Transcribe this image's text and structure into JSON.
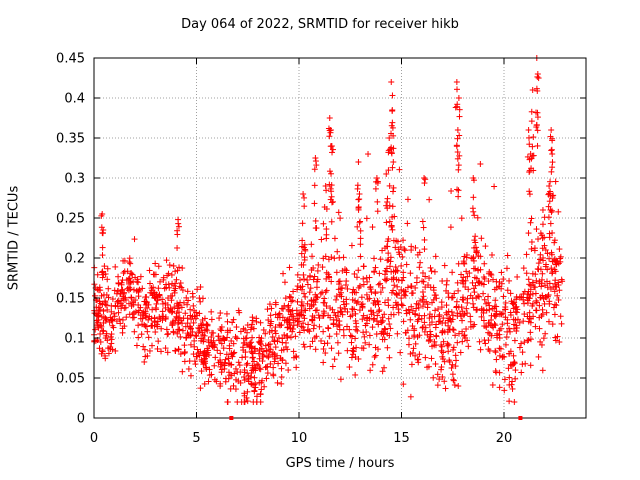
{
  "chart_data": {
    "type": "scatter",
    "title": "Day 064 of 2022, SRMTID for receiver hikb",
    "xlabel": "GPS time / hours",
    "ylabel": "SRMTID / TECUs",
    "xlim": [
      0,
      24
    ],
    "ylim": [
      0,
      0.45
    ],
    "xticks": [
      "0",
      "5",
      "10",
      "15",
      "20"
    ],
    "yticks": [
      "0",
      "0.05",
      "0.1",
      "0.15",
      "0.2",
      "0.25",
      "0.3",
      "0.35",
      "0.4",
      "0.45"
    ],
    "grid": true,
    "marker": "+",
    "color": "#ff0000",
    "baseline_markers": [
      {
        "x": 6.7,
        "y": 0
      },
      {
        "x": 20.8,
        "y": 0
      }
    ],
    "trend": [
      [
        0,
        0.13
      ],
      [
        0.5,
        0.125
      ],
      [
        1,
        0.13
      ],
      [
        1.5,
        0.155
      ],
      [
        2,
        0.15
      ],
      [
        2.5,
        0.125
      ],
      [
        3,
        0.14
      ],
      [
        3.5,
        0.145
      ],
      [
        4,
        0.13
      ],
      [
        4.5,
        0.12
      ],
      [
        5,
        0.11
      ],
      [
        5.5,
        0.09
      ],
      [
        6,
        0.085
      ],
      [
        6.5,
        0.08
      ],
      [
        7,
        0.075
      ],
      [
        7.5,
        0.07
      ],
      [
        8,
        0.075
      ],
      [
        8.5,
        0.09
      ],
      [
        9,
        0.1
      ],
      [
        9.5,
        0.12
      ],
      [
        10,
        0.13
      ],
      [
        10.5,
        0.15
      ],
      [
        11,
        0.145
      ],
      [
        11.5,
        0.15
      ],
      [
        12,
        0.13
      ],
      [
        12.5,
        0.125
      ],
      [
        13,
        0.135
      ],
      [
        13.5,
        0.14
      ],
      [
        14,
        0.12
      ],
      [
        14.5,
        0.18
      ],
      [
        15,
        0.15
      ],
      [
        15.5,
        0.13
      ],
      [
        16,
        0.125
      ],
      [
        16.5,
        0.13
      ],
      [
        17,
        0.11
      ],
      [
        17.5,
        0.11
      ],
      [
        18,
        0.13
      ],
      [
        18.5,
        0.155
      ],
      [
        19,
        0.15
      ],
      [
        19.5,
        0.135
      ],
      [
        20,
        0.11
      ],
      [
        20.5,
        0.095
      ],
      [
        21,
        0.12
      ],
      [
        21.5,
        0.18
      ],
      [
        22,
        0.16
      ],
      [
        22.5,
        0.17
      ],
      [
        22.9,
        0.17
      ]
    ],
    "spikes": [
      [
        0.4,
        0.255
      ],
      [
        0.45,
        0.235
      ],
      [
        4.1,
        0.248
      ],
      [
        10.2,
        0.28
      ],
      [
        10.8,
        0.325
      ],
      [
        11.5,
        0.375
      ],
      [
        11.55,
        0.36
      ],
      [
        11.6,
        0.34
      ],
      [
        11.3,
        0.29
      ],
      [
        12.9,
        0.32
      ],
      [
        12.95,
        0.28
      ],
      [
        13.8,
        0.3
      ],
      [
        14.5,
        0.42
      ],
      [
        14.55,
        0.385
      ],
      [
        14.4,
        0.35
      ],
      [
        14.6,
        0.32
      ],
      [
        14.3,
        0.27
      ],
      [
        16.1,
        0.3
      ],
      [
        17.7,
        0.42
      ],
      [
        17.8,
        0.4
      ],
      [
        17.75,
        0.36
      ],
      [
        18.5,
        0.3
      ],
      [
        21.6,
        0.45
      ],
      [
        21.65,
        0.43
      ],
      [
        21.4,
        0.41
      ],
      [
        21.2,
        0.36
      ],
      [
        21.3,
        0.33
      ],
      [
        22.3,
        0.36
      ],
      [
        22.35,
        0.33
      ],
      [
        22.2,
        0.29
      ],
      [
        21.9,
        0.26
      ]
    ]
  }
}
